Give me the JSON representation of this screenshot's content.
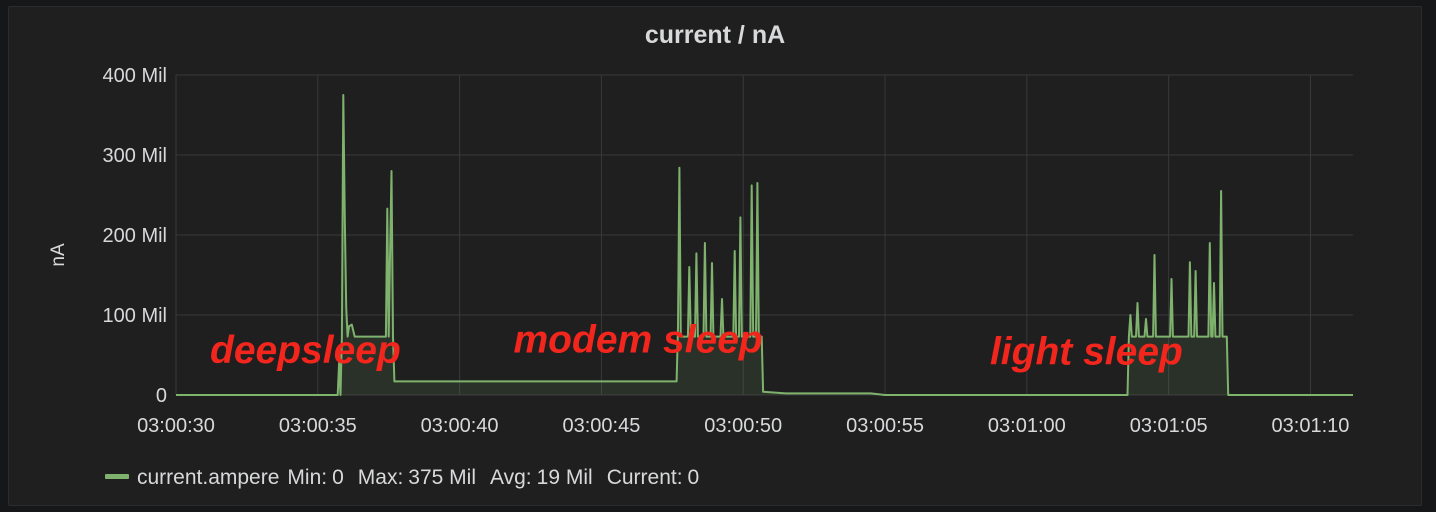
{
  "chart_data": {
    "type": "line",
    "title": "current / nA",
    "ylabel": "nA",
    "xlabel": "",
    "ylim": [
      0,
      400
    ],
    "y_unit": "Mil",
    "y_ticks": [
      {
        "v": 0,
        "label": "0"
      },
      {
        "v": 100,
        "label": "100 Mil"
      },
      {
        "v": 200,
        "label": "200 Mil"
      },
      {
        "v": 300,
        "label": "300 Mil"
      },
      {
        "v": 400,
        "label": "400 Mil"
      }
    ],
    "xlim": [
      0,
      41.5
    ],
    "x_start": "03:00:30",
    "x_ticks": [
      {
        "v": 0,
        "label": "03:00:30"
      },
      {
        "v": 5,
        "label": "03:00:35"
      },
      {
        "v": 10,
        "label": "03:00:40"
      },
      {
        "v": 15,
        "label": "03:00:45"
      },
      {
        "v": 20,
        "label": "03:00:50"
      },
      {
        "v": 25,
        "label": "03:00:55"
      },
      {
        "v": 30,
        "label": "03:01:00"
      },
      {
        "v": 35,
        "label": "03:01:05"
      },
      {
        "v": 40,
        "label": "03:01:10"
      }
    ],
    "grid": true,
    "legend_position": "bottom-left",
    "series": [
      {
        "name": "current.ampere",
        "color": "#7eb26d",
        "fill": true,
        "points": [
          [
            -1.5,
            0
          ],
          [
            5.7,
            0
          ],
          [
            5.75,
            40
          ],
          [
            5.8,
            0
          ],
          [
            5.85,
            73
          ],
          [
            5.9,
            375
          ],
          [
            5.95,
            220
          ],
          [
            6.0,
            110
          ],
          [
            6.05,
            73
          ],
          [
            6.1,
            86
          ],
          [
            6.2,
            88
          ],
          [
            6.3,
            73
          ],
          [
            7.4,
            73
          ],
          [
            7.45,
            233
          ],
          [
            7.5,
            73
          ],
          [
            7.55,
            180
          ],
          [
            7.6,
            280
          ],
          [
            7.65,
            73
          ],
          [
            7.7,
            17
          ],
          [
            17.65,
            17
          ],
          [
            17.7,
            85
          ],
          [
            17.75,
            284
          ],
          [
            17.8,
            73
          ],
          [
            18.05,
            73
          ],
          [
            18.1,
            160
          ],
          [
            18.15,
            73
          ],
          [
            18.3,
            73
          ],
          [
            18.35,
            177
          ],
          [
            18.4,
            73
          ],
          [
            18.6,
            73
          ],
          [
            18.65,
            190
          ],
          [
            18.7,
            73
          ],
          [
            18.85,
            73
          ],
          [
            18.9,
            165
          ],
          [
            18.95,
            73
          ],
          [
            19.2,
            73
          ],
          [
            19.25,
            120
          ],
          [
            19.3,
            73
          ],
          [
            19.65,
            73
          ],
          [
            19.7,
            180
          ],
          [
            19.75,
            73
          ],
          [
            19.85,
            73
          ],
          [
            19.9,
            222
          ],
          [
            19.95,
            73
          ],
          [
            20.25,
            73
          ],
          [
            20.3,
            262
          ],
          [
            20.35,
            73
          ],
          [
            20.45,
            73
          ],
          [
            20.5,
            265
          ],
          [
            20.55,
            73
          ],
          [
            20.65,
            73
          ],
          [
            20.7,
            4
          ],
          [
            21.5,
            2
          ],
          [
            24.5,
            2
          ],
          [
            25.0,
            0
          ],
          [
            33.55,
            0
          ],
          [
            33.6,
            73
          ],
          [
            33.65,
            100
          ],
          [
            33.7,
            73
          ],
          [
            33.85,
            73
          ],
          [
            33.9,
            115
          ],
          [
            33.95,
            73
          ],
          [
            34.15,
            73
          ],
          [
            34.2,
            95
          ],
          [
            34.25,
            73
          ],
          [
            34.45,
            73
          ],
          [
            34.5,
            175
          ],
          [
            34.55,
            73
          ],
          [
            35.05,
            73
          ],
          [
            35.1,
            145
          ],
          [
            35.15,
            73
          ],
          [
            35.7,
            73
          ],
          [
            35.75,
            166
          ],
          [
            35.8,
            73
          ],
          [
            35.9,
            73
          ],
          [
            35.95,
            155
          ],
          [
            36.0,
            73
          ],
          [
            36.4,
            73
          ],
          [
            36.45,
            190
          ],
          [
            36.5,
            73
          ],
          [
            36.55,
            73
          ],
          [
            36.6,
            140
          ],
          [
            36.65,
            73
          ],
          [
            36.8,
            73
          ],
          [
            36.85,
            255
          ],
          [
            36.9,
            73
          ],
          [
            37.05,
            73
          ],
          [
            37.1,
            0
          ],
          [
            41.5,
            0
          ]
        ]
      }
    ],
    "annotations": [
      {
        "text": "deepsleep",
        "x": 1.2,
        "y": 40
      },
      {
        "text": "modem sleep",
        "x": 11.9,
        "y": 53
      },
      {
        "text": "light sleep",
        "x": 28.7,
        "y": 38
      }
    ]
  },
  "legend": {
    "series_name": "current.ampere",
    "min_label": "Min:",
    "min_value": "0",
    "max_label": "Max:",
    "max_value": "375 Mil",
    "avg_label": "Avg:",
    "avg_value": "19 Mil",
    "current_label": "Current:",
    "current_value": "0",
    "color": "#7eb26d"
  }
}
